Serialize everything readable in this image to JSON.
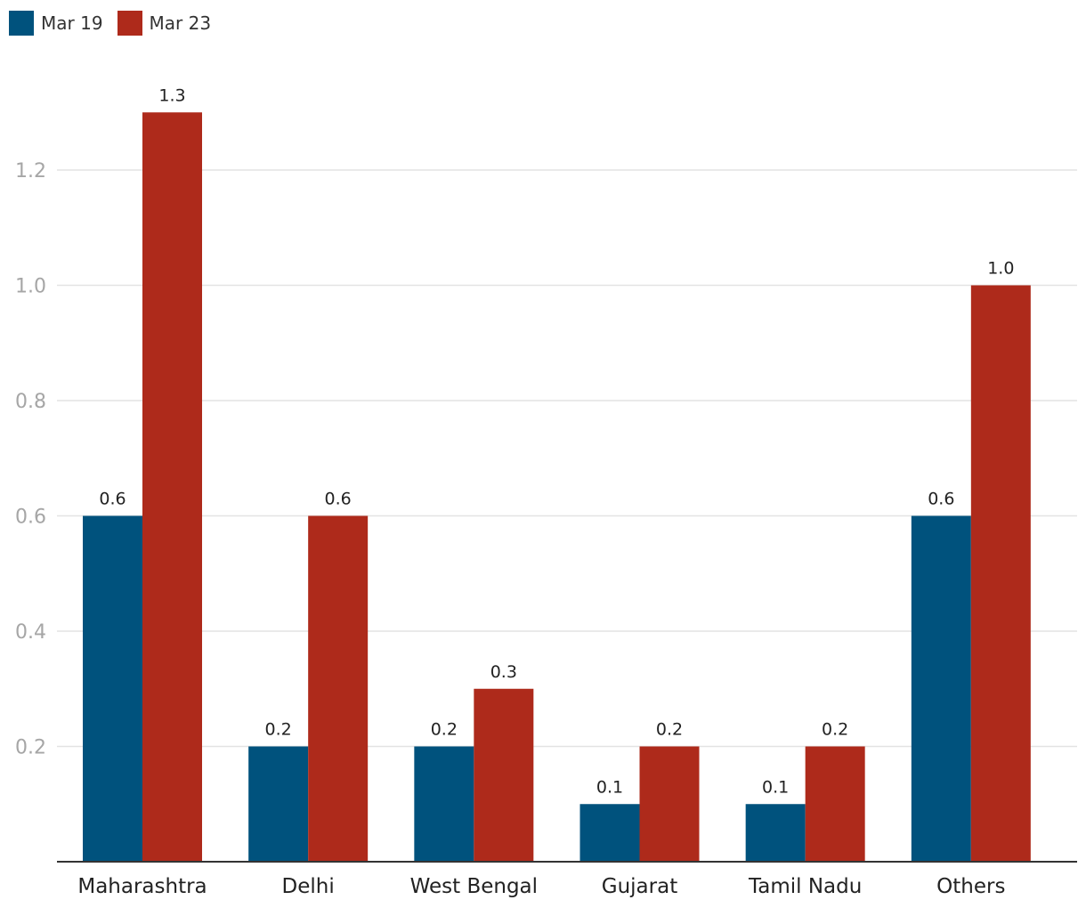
{
  "chart_data": {
    "type": "bar",
    "title": "",
    "xlabel": "",
    "ylabel": "",
    "categories": [
      "Maharashtra",
      "Delhi",
      "West Bengal",
      "Gujarat",
      "Tamil Nadu",
      "Others"
    ],
    "series": [
      {
        "name": "Mar 19",
        "color": "#00527d",
        "values": [
          0.6,
          0.2,
          0.2,
          0.1,
          0.1,
          0.6
        ]
      },
      {
        "name": "Mar 23",
        "color": "#ae2a1b",
        "values": [
          1.3,
          0.6,
          0.3,
          0.2,
          0.2,
          1.0
        ]
      }
    ],
    "ylim": [
      0,
      1.4
    ],
    "yticks": [
      0.2,
      0.4,
      0.6,
      0.8,
      1.0,
      1.2
    ],
    "ytick_labels": [
      "0.2",
      "0.4",
      "0.6",
      "0.8",
      "1.0",
      "1.2"
    ],
    "grid": true,
    "legend_position": "top-left"
  }
}
